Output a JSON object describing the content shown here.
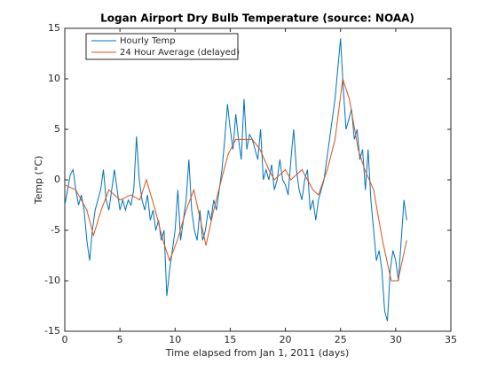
{
  "chart_data": {
    "type": "line",
    "title": "Logan Airport Dry Bulb Temperature (source: NOAA)",
    "x_label": "Time elapsed from Jan 1, 2011 (days)",
    "y_label": "Temp (°C)",
    "xlim": [
      0,
      35
    ],
    "ylim": [
      -15,
      15
    ],
    "xticks": [
      0,
      5,
      10,
      15,
      20,
      25,
      30,
      35
    ],
    "yticks": [
      -15,
      -10,
      -5,
      0,
      5,
      10,
      15
    ],
    "grid": false,
    "legend": "upper-left",
    "series": [
      {
        "name": "Hourly Temp",
        "color": "#0072bd",
        "x": [
          0,
          0.25,
          0.5,
          0.75,
          1,
          1.25,
          1.5,
          1.75,
          2,
          2.25,
          2.5,
          2.75,
          3,
          3.25,
          3.5,
          3.75,
          4,
          4.25,
          4.5,
          4.75,
          5,
          5.25,
          5.5,
          5.75,
          6,
          6.25,
          6.5,
          6.75,
          7,
          7.25,
          7.5,
          7.75,
          8,
          8.25,
          8.5,
          8.75,
          9,
          9.25,
          9.5,
          9.75,
          10,
          10.25,
          10.5,
          10.75,
          11,
          11.25,
          11.5,
          11.75,
          12,
          12.25,
          12.5,
          12.75,
          13,
          13.25,
          13.5,
          13.75,
          14,
          14.25,
          14.5,
          14.75,
          15,
          15.25,
          15.5,
          15.75,
          16,
          16.25,
          16.5,
          16.75,
          17,
          17.25,
          17.5,
          17.75,
          18,
          18.25,
          18.5,
          18.75,
          19,
          19.25,
          19.5,
          19.75,
          20,
          20.25,
          20.5,
          20.75,
          21,
          21.25,
          21.5,
          21.75,
          22,
          22.25,
          22.5,
          22.75,
          23,
          23.25,
          23.5,
          23.75,
          24,
          24.25,
          24.5,
          24.75,
          25,
          25.25,
          25.5,
          25.75,
          26,
          26.25,
          26.5,
          26.75,
          27,
          27.25,
          27.5,
          27.75,
          28,
          28.25,
          28.5,
          28.75,
          29,
          29.25,
          29.5,
          29.75,
          30,
          30.25,
          30.5,
          30.75,
          31
        ],
        "values": [
          -2.5,
          -1,
          0.5,
          1,
          -1,
          -2.5,
          -1.5,
          -3,
          -6,
          -8,
          -5,
          -3,
          -2,
          -1,
          1,
          -2,
          -3,
          -1,
          1,
          -1,
          -3,
          -2,
          -3,
          -2,
          -2.5,
          -1,
          4.3,
          0,
          -2,
          -3,
          -1.5,
          -4,
          -3,
          -5,
          -4,
          -6,
          -5,
          -11.5,
          -9,
          -7,
          -5,
          -1,
          -6,
          -4,
          -2,
          2,
          -3,
          -5,
          -6,
          -3,
          -6,
          -5,
          -3,
          -4,
          -2,
          -3,
          -1,
          1,
          4,
          7.5,
          5,
          3,
          6.5,
          4,
          2,
          8,
          3,
          4.5,
          4,
          3,
          2,
          5,
          0,
          1,
          0,
          1.5,
          -1,
          0,
          2,
          0,
          -0.5,
          -1.5,
          2,
          5,
          1,
          -1,
          -2,
          0,
          1,
          -3,
          -2,
          -4,
          -2,
          -1,
          0,
          2,
          4,
          6,
          8,
          11,
          14,
          9,
          5,
          6,
          7,
          4,
          5,
          2,
          3,
          -1,
          3,
          -2,
          -5,
          -8,
          -7,
          -9,
          -13,
          -14,
          -9,
          -7,
          -8,
          -10,
          -6,
          -2,
          -4
        ]
      },
      {
        "name": "24 Hour Average (delayed)",
        "color": "#d95319",
        "x": [
          0,
          1,
          2,
          2.6,
          3.3,
          4,
          5,
          6,
          6.8,
          7.4,
          8.2,
          8.9,
          9.5,
          10.2,
          11,
          11.7,
          12.3,
          12.8,
          13.5,
          14.2,
          14.8,
          15.5,
          17,
          17.7,
          18.5,
          19,
          19.5,
          20,
          20.5,
          21.5,
          22.5,
          23,
          23.8,
          24.5,
          25.2,
          25.8,
          26.6,
          27.2,
          28,
          28.8,
          29.6,
          30.2,
          30.6,
          31
        ],
        "values": [
          -0.5,
          -1,
          -3,
          -5.5,
          -3,
          -1,
          -2,
          -1.5,
          -2,
          0,
          -3,
          -6,
          -8,
          -6,
          -3,
          -1,
          -4,
          -6.5,
          -3,
          0,
          2.5,
          4,
          4,
          3,
          1,
          0,
          0.5,
          1,
          0,
          1,
          -1,
          -1.5,
          1,
          4,
          10,
          8,
          3,
          1,
          -1,
          -6,
          -10,
          -10,
          -8,
          -6
        ]
      }
    ]
  }
}
